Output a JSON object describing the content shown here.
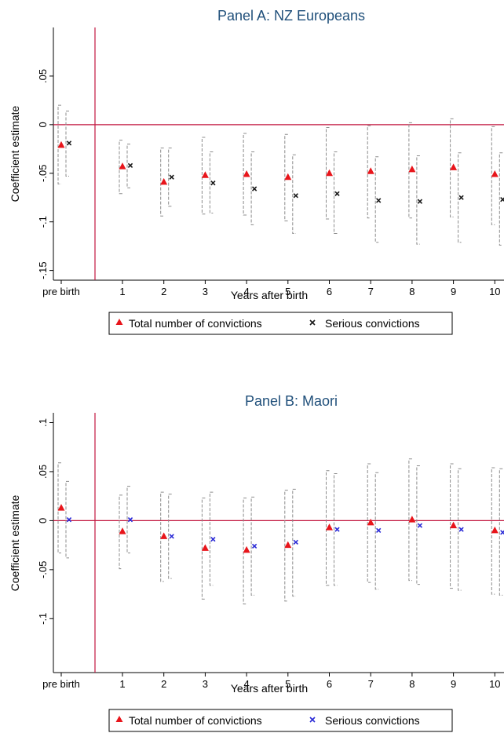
{
  "chart_data": [
    {
      "type": "scatter",
      "title": "Panel A: NZ Europeans",
      "xlabel": "Years after birth",
      "ylabel": "Coefficient estimate",
      "categories": [
        "pre birth",
        "1",
        "2",
        "3",
        "4",
        "5",
        "6",
        "7",
        "8",
        "9",
        "10"
      ],
      "yticks": [
        {
          "value": 0.05,
          "label": ".05"
        },
        {
          "value": 0,
          "label": "0"
        },
        {
          "value": -0.05,
          "label": "-.05"
        },
        {
          "value": -0.1,
          "label": "-.1"
        },
        {
          "value": -0.15,
          "label": "-.15"
        }
      ],
      "ylim": [
        -0.16,
        0.1
      ],
      "reference_line_y": 0,
      "grid": false,
      "legend_position": "bottom",
      "series": [
        {
          "name": "Total number of convictions",
          "marker": "triangle",
          "color": "#e8151b",
          "values": [
            -0.021,
            -0.043,
            -0.059,
            -0.052,
            -0.051,
            -0.054,
            -0.05,
            -0.048,
            -0.046,
            -0.044,
            -0.051
          ],
          "ci_low": [
            -0.061,
            -0.071,
            -0.094,
            -0.092,
            -0.093,
            -0.099,
            -0.097,
            -0.096,
            -0.096,
            -0.095,
            -0.103
          ],
          "ci_high": [
            0.02,
            -0.016,
            -0.024,
            -0.013,
            -0.009,
            -0.01,
            -0.003,
            -0.001,
            0.002,
            0.006,
            -0.002
          ]
        },
        {
          "name": "Serious convictions",
          "marker": "x",
          "color": "#1a1a1a",
          "values": [
            -0.019,
            -0.042,
            -0.054,
            -0.06,
            -0.066,
            -0.073,
            -0.071,
            -0.078,
            -0.079,
            -0.075,
            -0.077
          ],
          "ci_low": [
            -0.053,
            -0.065,
            -0.084,
            -0.091,
            -0.103,
            -0.112,
            -0.112,
            -0.121,
            -0.123,
            -0.121,
            -0.124
          ],
          "ci_high": [
            0.014,
            -0.02,
            -0.024,
            -0.028,
            -0.028,
            -0.031,
            -0.028,
            -0.033,
            -0.032,
            -0.029,
            -0.029
          ]
        }
      ]
    },
    {
      "type": "scatter",
      "title": "Panel B: Maori",
      "xlabel": "Years after birth",
      "ylabel": "Coefficient estimate",
      "categories": [
        "pre birth",
        "1",
        "2",
        "3",
        "4",
        "5",
        "6",
        "7",
        "8",
        "9",
        "10"
      ],
      "yticks": [
        {
          "value": 0.1,
          "label": ".1"
        },
        {
          "value": 0.05,
          "label": ".05"
        },
        {
          "value": 0,
          "label": "0"
        },
        {
          "value": -0.05,
          "label": "-.05"
        },
        {
          "value": -0.1,
          "label": "-.1"
        }
      ],
      "ylim": [
        -0.155,
        0.11
      ],
      "reference_line_y": 0,
      "grid": false,
      "legend_position": "bottom",
      "series": [
        {
          "name": "Total number of convictions",
          "marker": "triangle",
          "color": "#e8151b",
          "values": [
            0.013,
            -0.011,
            -0.016,
            -0.028,
            -0.03,
            -0.025,
            -0.007,
            -0.002,
            0.001,
            -0.005,
            -0.01
          ],
          "ci_low": [
            -0.033,
            -0.049,
            -0.062,
            -0.08,
            -0.085,
            -0.082,
            -0.066,
            -0.063,
            -0.061,
            -0.069,
            -0.075
          ],
          "ci_high": [
            0.059,
            0.026,
            0.029,
            0.023,
            0.023,
            0.031,
            0.051,
            0.058,
            0.063,
            0.058,
            0.054
          ]
        },
        {
          "name": "Serious convictions",
          "marker": "x",
          "color": "#2b2bd6",
          "values": [
            0.001,
            0.001,
            -0.016,
            -0.019,
            -0.026,
            -0.022,
            -0.009,
            -0.01,
            -0.005,
            -0.009,
            -0.012
          ],
          "ci_low": [
            -0.038,
            -0.033,
            -0.059,
            -0.066,
            -0.076,
            -0.077,
            -0.066,
            -0.07,
            -0.065,
            -0.071,
            -0.076
          ],
          "ci_high": [
            0.04,
            0.035,
            0.027,
            0.029,
            0.024,
            0.032,
            0.048,
            0.049,
            0.056,
            0.053,
            0.053
          ]
        }
      ]
    }
  ]
}
